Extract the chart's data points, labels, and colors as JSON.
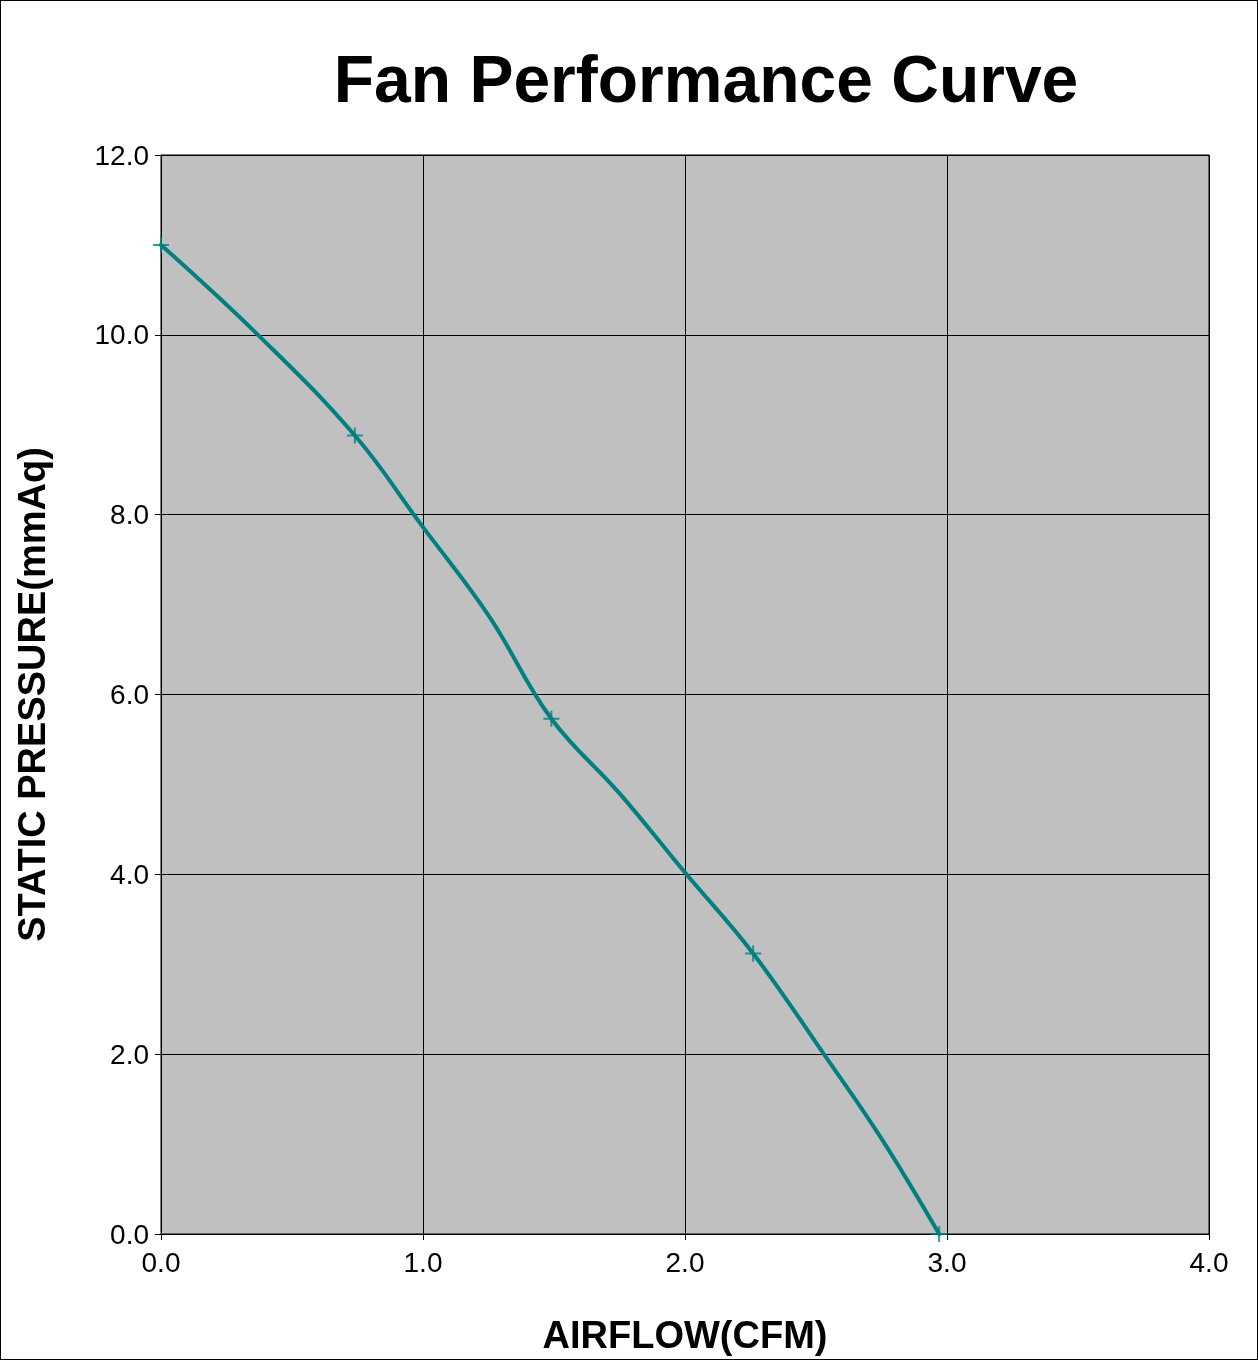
{
  "chart_data": {
    "type": "line",
    "title": "Fan Performance Curve",
    "xlabel": "AIRFLOW(CFM)",
    "ylabel": "STATIC PRESSURE(mmAq)",
    "series": [
      {
        "color": "#008080",
        "marker": "none",
        "x": [
          0,
          0.37,
          0.74,
          0.99,
          1.25,
          1.49,
          1.75,
          2.0,
          2.26,
          2.53,
          2.75,
          2.97
        ],
        "values": [
          11.0,
          10.0,
          8.88,
          7.9,
          6.88,
          5.73,
          4.9,
          4.02,
          3.12,
          2.0,
          1.06,
          0
        ]
      },
      {
        "type": "scatter",
        "color": "#008080",
        "marker": "cross",
        "x": [
          0,
          0.74,
          1.49,
          2.26,
          2.97
        ],
        "values": [
          11.0,
          8.88,
          5.73,
          3.12,
          0
        ]
      }
    ],
    "xlim": [
      0,
      4
    ],
    "xticks": [
      {
        "value": 0,
        "label": "0.0"
      },
      {
        "value": 1,
        "label": "1.0"
      },
      {
        "value": 2,
        "label": "2.0"
      },
      {
        "value": 3,
        "label": "3.0"
      },
      {
        "value": 4,
        "label": "4.0"
      }
    ],
    "ylim": [
      0,
      12
    ],
    "yticks": [
      {
        "value": 0,
        "label": "0.0"
      },
      {
        "value": 2,
        "label": "2.0"
      },
      {
        "value": 4,
        "label": "4.0"
      },
      {
        "value": 6,
        "label": "6.0"
      },
      {
        "value": 8,
        "label": "8.0"
      },
      {
        "value": 10,
        "label": "10.0"
      },
      {
        "value": 12,
        "label": "12.0"
      }
    ],
    "grid": true
  }
}
